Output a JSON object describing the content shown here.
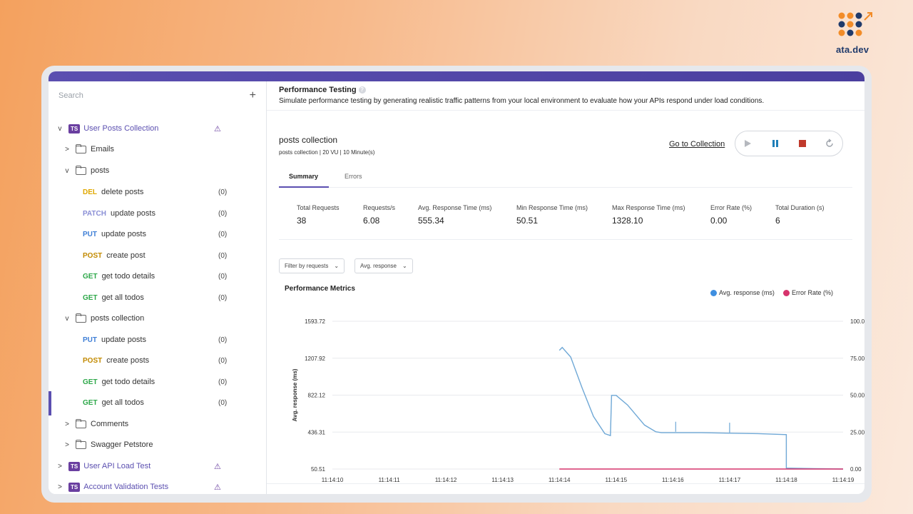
{
  "brand": {
    "logo_text": "ata.dev"
  },
  "sidebar": {
    "search_placeholder": "Search",
    "add_label": "+",
    "items": [
      {
        "kind": "collection",
        "chev": "v",
        "badge": "TS",
        "label": "User Posts Collection",
        "warn": true
      },
      {
        "kind": "folder",
        "chev": ">",
        "label": "Emails"
      },
      {
        "kind": "folder",
        "chev": "v",
        "label": "posts"
      },
      {
        "kind": "request",
        "method": "DEL",
        "label": "delete posts",
        "count": "(0)"
      },
      {
        "kind": "request",
        "method": "PATCH",
        "label": "update posts",
        "count": "(0)"
      },
      {
        "kind": "request",
        "method": "PUT",
        "label": "update posts",
        "count": "(0)"
      },
      {
        "kind": "request",
        "method": "POST",
        "label": "create post",
        "count": "(0)"
      },
      {
        "kind": "request",
        "method": "GET",
        "label": "get todo details",
        "count": "(0)"
      },
      {
        "kind": "request",
        "method": "GET",
        "label": "get all todos",
        "count": "(0)"
      },
      {
        "kind": "folder",
        "chev": "v",
        "label": "posts collection"
      },
      {
        "kind": "request",
        "method": "PUT",
        "label": "update posts",
        "count": "(0)"
      },
      {
        "kind": "request",
        "method": "POST",
        "label": "create posts",
        "count": "(0)"
      },
      {
        "kind": "request",
        "method": "GET",
        "label": "get todo details",
        "count": "(0)"
      },
      {
        "kind": "request",
        "method": "GET",
        "label": "get all todos",
        "count": "(0)"
      },
      {
        "kind": "folder",
        "chev": ">",
        "label": "Comments"
      },
      {
        "kind": "folder",
        "chev": ">",
        "label": "Swagger Petstore"
      },
      {
        "kind": "collection",
        "chev": ">",
        "badge": "TS",
        "label": "User API Load Test",
        "warn": true
      },
      {
        "kind": "collection",
        "chev": ">",
        "badge": "TS",
        "label": "Account Validation Tests",
        "warn": true
      }
    ]
  },
  "main": {
    "title": "Performance Testing",
    "description": "Simulate performance testing by generating realistic traffic patterns from your local environment to evaluate how your APIs respond under load conditions.",
    "collection_name": "posts collection",
    "collection_meta": "posts collection  |  20 VU  |  10 Minute(s)",
    "goto_label": "Go to Collection",
    "tabs": [
      "Summary",
      "Errors"
    ],
    "stats": [
      {
        "label": "Total Requests",
        "value": "38"
      },
      {
        "label": "Requests/s",
        "value": "6.08"
      },
      {
        "label": "Avg. Response Time (ms)",
        "value": "555.34"
      },
      {
        "label": "Min Response Time (ms)",
        "value": "50.51"
      },
      {
        "label": "Max Response Time (ms)",
        "value": "1328.10"
      },
      {
        "label": "Error Rate (%)",
        "value": "0.00"
      },
      {
        "label": "Total Duration (s)",
        "value": "6"
      }
    ],
    "filters": [
      "Filter by requests",
      "Avg. response"
    ],
    "chart_title": "Performance Metrics"
  },
  "colors": {
    "accent": "#5b4fb0",
    "avg_line": "#6fa8d6",
    "error_line": "#d6336c",
    "stop": "#c0392b",
    "pause": "#1f7fb8"
  },
  "chart_data": {
    "type": "line",
    "x_categories": [
      "11:14:10",
      "11:14:11",
      "11:14:12",
      "11:14:13",
      "11:14:14",
      "11:14:15",
      "11:14:16",
      "11:14:17",
      "11:14:18",
      "11:14:19"
    ],
    "y_left_ticks": [
      "1593.72",
      "1207.92",
      "822.12",
      "436.31",
      "50.51"
    ],
    "y_right_ticks": [
      "100.00",
      "75.00",
      "50.00",
      "25.00",
      "0.00"
    ],
    "ylim_left": [
      50.51,
      1593.72
    ],
    "ylim_right": [
      0,
      100
    ],
    "ylabel_left": "Avg. response (ms)",
    "ylabel_right": "Error Rate (%)",
    "grid": true,
    "legend_position": "top-right",
    "series": [
      {
        "name": "Avg. response (ms)",
        "axis": "left",
        "color": "#6fa8d6",
        "points": [
          [
            4.0,
            1290
          ],
          [
            4.05,
            1320
          ],
          [
            4.2,
            1220
          ],
          [
            4.4,
            900
          ],
          [
            4.6,
            600
          ],
          [
            4.8,
            420
          ],
          [
            4.9,
            400
          ],
          [
            4.92,
            820
          ],
          [
            5.0,
            820
          ],
          [
            5.2,
            720
          ],
          [
            5.5,
            510
          ],
          [
            5.7,
            440
          ],
          [
            5.8,
            430
          ],
          [
            6.0,
            430
          ],
          [
            6.5,
            430
          ],
          [
            7.0,
            425
          ],
          [
            7.5,
            420
          ],
          [
            8.0,
            410
          ],
          [
            8.0,
            60
          ],
          [
            8.5,
            55
          ],
          [
            9.0,
            50.51
          ]
        ]
      },
      {
        "name": "Error Rate (%)",
        "axis": "right",
        "color": "#d6336c",
        "points": [
          [
            4.0,
            0
          ],
          [
            5.0,
            0
          ],
          [
            6.0,
            0
          ],
          [
            7.0,
            0
          ],
          [
            8.0,
            0
          ],
          [
            9.0,
            0
          ]
        ]
      }
    ]
  }
}
